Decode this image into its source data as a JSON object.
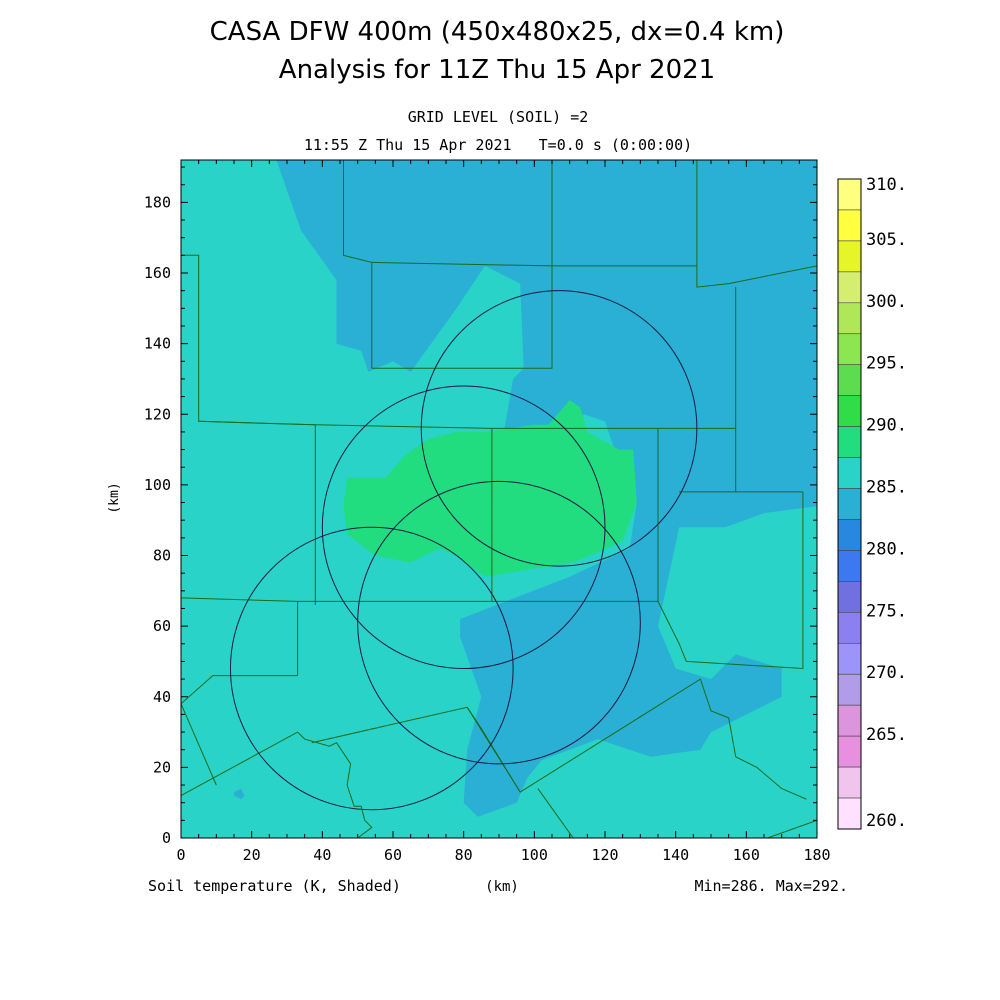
{
  "header": {
    "title_line1": "CASA DFW 400m (450x480x25, dx=0.4 km)",
    "title_line2": "Analysis for 11Z Thu 15 Apr 2021",
    "subtitle_line1": "GRID LEVEL (SOIL) =2",
    "subtitle_line2": "11:55 Z Thu 15 Apr 2021   T=0.0 s (0:00:00)"
  },
  "footer": {
    "variable_label": "Soil temperature (K, Shaded)",
    "xaxis_unit": "(km)",
    "minmax": "Min=286. Max=292."
  },
  "colors": {
    "background_field": "#29d3c8",
    "cool_region": "#29b0d4",
    "warm_region": "#22dc80",
    "county_lines": "#1a6b1a",
    "radar_rings": "#1a1a40"
  },
  "chart_data": {
    "type": "heatmap",
    "xlabel": "(km)",
    "ylabel": "(km)",
    "xlim": [
      0,
      180
    ],
    "ylim": [
      0,
      192
    ],
    "xticks": [
      0,
      20,
      40,
      60,
      80,
      100,
      120,
      140,
      160,
      180
    ],
    "yticks": [
      0,
      20,
      40,
      60,
      80,
      100,
      120,
      140,
      160,
      180
    ],
    "grid": false,
    "units": "K",
    "min": 286,
    "max": 292,
    "colorbar": {
      "placement": "right",
      "levels": [
        {
          "label": "310.",
          "value": 310,
          "color": "#ffff80"
        },
        {
          "label": "",
          "value": 307.5,
          "color": "#ffff40"
        },
        {
          "label": "305.",
          "value": 305,
          "color": "#e6f528"
        },
        {
          "label": "",
          "value": 302.5,
          "color": "#d6ee70"
        },
        {
          "label": "300.",
          "value": 300,
          "color": "#aee858"
        },
        {
          "label": "",
          "value": 297.5,
          "color": "#8ce650"
        },
        {
          "label": "295.",
          "value": 295,
          "color": "#5ddc50"
        },
        {
          "label": "",
          "value": 292.5,
          "color": "#30dc48"
        },
        {
          "label": "290.",
          "value": 290,
          "color": "#22dc80"
        },
        {
          "label": "",
          "value": 287.5,
          "color": "#29d3c8"
        },
        {
          "label": "285.",
          "value": 285,
          "color": "#29b0d4"
        },
        {
          "label": "",
          "value": 282.5,
          "color": "#2888e0"
        },
        {
          "label": "280.",
          "value": 280,
          "color": "#3c78f0"
        },
        {
          "label": "",
          "value": 277.5,
          "color": "#7070e0"
        },
        {
          "label": "275.",
          "value": 275,
          "color": "#8c80f0"
        },
        {
          "label": "",
          "value": 272.5,
          "color": "#9c94f8"
        },
        {
          "label": "270.",
          "value": 270,
          "color": "#b09ce8"
        },
        {
          "label": "",
          "value": 267.5,
          "color": "#dc94dc"
        },
        {
          "label": "265.",
          "value": 265,
          "color": "#e890e0"
        },
        {
          "label": "",
          "value": 262.5,
          "color": "#f0c4ec"
        },
        {
          "label": "260.",
          "value": 260,
          "color": "#ffe0ff"
        }
      ]
    },
    "regions": [
      {
        "name": "cool-north",
        "value_range": "285-287.5",
        "color": "#29b0d4",
        "polygon": [
          [
            27,
            192
          ],
          [
            180,
            192
          ],
          [
            180,
            94
          ],
          [
            165,
            92
          ],
          [
            154,
            88
          ],
          [
            141,
            88
          ],
          [
            135,
            60
          ],
          [
            140,
            48
          ],
          [
            150,
            45
          ],
          [
            157,
            52
          ],
          [
            170,
            48
          ],
          [
            170,
            40
          ],
          [
            150,
            30
          ],
          [
            147,
            25
          ],
          [
            133,
            23
          ],
          [
            118,
            28
          ],
          [
            102,
            22
          ],
          [
            98,
            17
          ],
          [
            95,
            10
          ],
          [
            84,
            6
          ],
          [
            80,
            10
          ],
          [
            81,
            25
          ],
          [
            85,
            40
          ],
          [
            79,
            57
          ],
          [
            79,
            62
          ],
          [
            110,
            74
          ],
          [
            127,
            82
          ],
          [
            129,
            95
          ],
          [
            125,
            103
          ],
          [
            120,
            118
          ],
          [
            114,
            120
          ],
          [
            107,
            112
          ],
          [
            104,
            108
          ],
          [
            105,
            96
          ],
          [
            100,
            93
          ],
          [
            95,
            93
          ],
          [
            90,
            107
          ],
          [
            94,
            130
          ],
          [
            97,
            133
          ],
          [
            96,
            157
          ],
          [
            86,
            162
          ],
          [
            78,
            150
          ],
          [
            65,
            132
          ],
          [
            60,
            135
          ],
          [
            53,
            132
          ],
          [
            51,
            138
          ],
          [
            44,
            140
          ],
          [
            44,
            158
          ],
          [
            34,
            172
          ],
          [
            27,
            192
          ]
        ]
      },
      {
        "name": "cool-spot",
        "value_range": "285-287.5",
        "color": "#29b0d4",
        "polygon": [
          [
            15,
            12
          ],
          [
            17,
            11
          ],
          [
            18,
            12
          ],
          [
            17,
            14
          ],
          [
            15,
            13
          ]
        ]
      },
      {
        "name": "warm-core",
        "value_range": "290-292.5",
        "color": "#22dc80",
        "polygon": [
          [
            47,
            102
          ],
          [
            58,
            102
          ],
          [
            63,
            108
          ],
          [
            70,
            113
          ],
          [
            78,
            115
          ],
          [
            86,
            115
          ],
          [
            100,
            117
          ],
          [
            104,
            117
          ],
          [
            110,
            124
          ],
          [
            113,
            122
          ],
          [
            115,
            115
          ],
          [
            124,
            110
          ],
          [
            128,
            110
          ],
          [
            129,
            95
          ],
          [
            125,
            84
          ],
          [
            111,
            78
          ],
          [
            98,
            76
          ],
          [
            86,
            74
          ],
          [
            78,
            80
          ],
          [
            73,
            82
          ],
          [
            65,
            78
          ],
          [
            55,
            80
          ],
          [
            47,
            86
          ],
          [
            46,
            94
          ]
        ]
      },
      {
        "name": "teal-east",
        "value_range": "287.5-290",
        "color": "#29d3c8",
        "polygon": [
          [
            160,
            88
          ],
          [
            180,
            86
          ],
          [
            180,
            80
          ],
          [
            162,
            82
          ],
          [
            160,
            88
          ]
        ]
      }
    ],
    "radar_ranges": [
      {
        "center_km": [
          107,
          116
        ],
        "radius_km": 39
      },
      {
        "center_km": [
          80,
          88
        ],
        "radius_km": 40
      },
      {
        "center_km": [
          90,
          61
        ],
        "radius_km": 40
      },
      {
        "center_km": [
          54,
          48
        ],
        "radius_km": 40
      }
    ],
    "county_boundaries": [
      [
        [
          0,
          165
        ],
        [
          5,
          165
        ],
        [
          5,
          118
        ],
        [
          38,
          117
        ],
        [
          38,
          68
        ]
      ],
      [
        [
          5,
          118
        ],
        [
          38,
          117
        ],
        [
          88,
          116
        ],
        [
          135,
          116
        ],
        [
          157,
          116
        ]
      ],
      [
        [
          0,
          68
        ],
        [
          33,
          67
        ],
        [
          62,
          67
        ],
        [
          135,
          67
        ]
      ],
      [
        [
          38,
          68
        ],
        [
          38,
          66
        ]
      ],
      [
        [
          46,
          192
        ],
        [
          46,
          165
        ],
        [
          54,
          163
        ],
        [
          54,
          133
        ]
      ],
      [
        [
          54,
          163
        ],
        [
          105,
          162
        ],
        [
          146,
          162
        ],
        [
          146,
          156
        ],
        [
          155,
          157
        ],
        [
          180,
          162
        ]
      ],
      [
        [
          54,
          133
        ],
        [
          105,
          133
        ],
        [
          105,
          162
        ]
      ],
      [
        [
          105,
          192
        ],
        [
          105,
          162
        ]
      ],
      [
        [
          146,
          192
        ],
        [
          146,
          162
        ]
      ],
      [
        [
          88,
          116
        ],
        [
          88,
          67
        ]
      ],
      [
        [
          135,
          116
        ],
        [
          135,
          67
        ],
        [
          141,
          55
        ],
        [
          143,
          50
        ]
      ],
      [
        [
          157,
          156
        ],
        [
          157,
          116
        ],
        [
          157,
          98
        ],
        [
          168,
          98
        ],
        [
          176,
          98
        ]
      ],
      [
        [
          141,
          98
        ],
        [
          157,
          98
        ]
      ],
      [
        [
          176,
          98
        ],
        [
          176,
          48
        ],
        [
          143,
          50
        ]
      ],
      [
        [
          0,
          12
        ],
        [
          33,
          30
        ],
        [
          35,
          28
        ],
        [
          42,
          26
        ],
        [
          44,
          27
        ],
        [
          48,
          21
        ],
        [
          47,
          15
        ],
        [
          49,
          9
        ],
        [
          51,
          9
        ],
        [
          52,
          5
        ],
        [
          54,
          3
        ],
        [
          50,
          0
        ]
      ],
      [
        [
          37,
          27
        ],
        [
          81,
          37
        ],
        [
          96,
          13
        ],
        [
          147,
          45
        ],
        [
          150,
          36
        ],
        [
          155,
          34
        ],
        [
          157,
          23
        ],
        [
          163,
          20
        ],
        [
          170,
          14
        ],
        [
          177,
          11
        ]
      ],
      [
        [
          0,
          38
        ],
        [
          9,
          46
        ],
        [
          33,
          46
        ]
      ],
      [
        [
          33,
          46
        ],
        [
          33,
          67
        ]
      ],
      [
        [
          0,
          38
        ],
        [
          10,
          15
        ]
      ],
      [
        [
          81,
          37
        ],
        [
          85,
          31
        ],
        [
          96,
          13
        ]
      ],
      [
        [
          101,
          14
        ],
        [
          111,
          0
        ]
      ],
      [
        [
          180,
          5
        ],
        [
          166,
          0
        ]
      ]
    ]
  }
}
